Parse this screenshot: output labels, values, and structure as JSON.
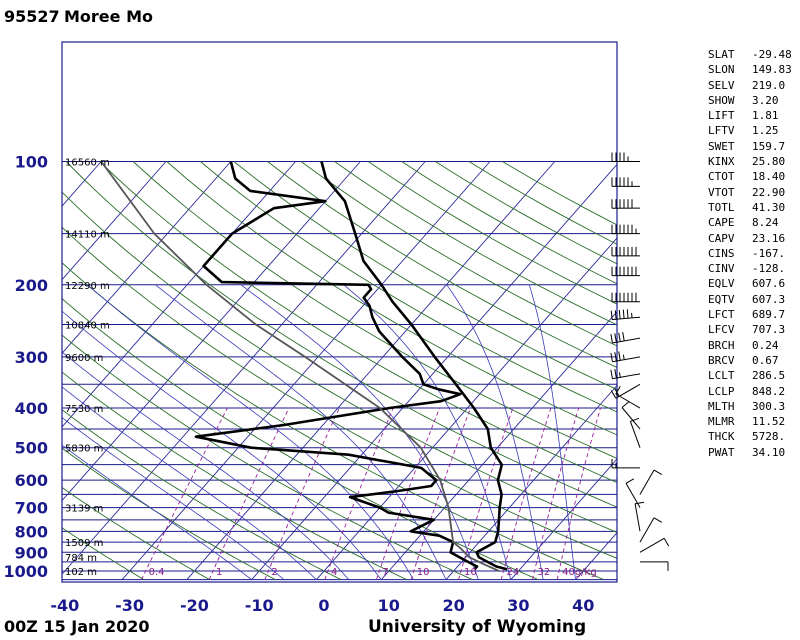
{
  "header": {
    "station_id": "95527",
    "station_name": "Moree Mo"
  },
  "footer": {
    "time": "00Z 15 Jan 2020",
    "source": "University of Wyoming"
  },
  "indices": [
    {
      "key": "SLAT",
      "value": "-29.48"
    },
    {
      "key": "SLON",
      "value": "149.83"
    },
    {
      "key": "SELV",
      "value": "219.0"
    },
    {
      "key": "SHOW",
      "value": "3.20"
    },
    {
      "key": "LIFT",
      "value": "1.81"
    },
    {
      "key": "LFTV",
      "value": "1.25"
    },
    {
      "key": "SWET",
      "value": "159.7"
    },
    {
      "key": "KINX",
      "value": "25.80"
    },
    {
      "key": "CTOT",
      "value": "18.40"
    },
    {
      "key": "VTOT",
      "value": "22.90"
    },
    {
      "key": "TOTL",
      "value": "41.30"
    },
    {
      "key": "CAPE",
      "value": "8.24"
    },
    {
      "key": "CAPV",
      "value": "23.16"
    },
    {
      "key": "CINS",
      "value": "-167."
    },
    {
      "key": "CINV",
      "value": "-128."
    },
    {
      "key": "EQLV",
      "value": "607.6"
    },
    {
      "key": "EQTV",
      "value": "607.3"
    },
    {
      "key": "LFCT",
      "value": "689.7"
    },
    {
      "key": "LFCV",
      "value": "707.3"
    },
    {
      "key": "BRCH",
      "value": "0.24"
    },
    {
      "key": "BRCV",
      "value": "0.67"
    },
    {
      "key": "LCLT",
      "value": "286.5"
    },
    {
      "key": "LCLP",
      "value": "848.2"
    },
    {
      "key": "MLTH",
      "value": "300.3"
    },
    {
      "key": "MLMR",
      "value": "11.52"
    },
    {
      "key": "THCK",
      "value": "5728."
    },
    {
      "key": "PWAT",
      "value": "34.10"
    }
  ],
  "chart_data": {
    "type": "line",
    "title": "",
    "xlabel": "",
    "ylabel": "",
    "x_axis_ticks": [
      -40,
      -30,
      -20,
      -10,
      0,
      10,
      20,
      30,
      40
    ],
    "y_axis_ticks": [
      100,
      200,
      300,
      400,
      500,
      600,
      700,
      800,
      900,
      1000
    ],
    "xlim": [
      -40,
      45
    ],
    "ylim": [
      1050,
      100
    ],
    "y_scale": "log",
    "skewed_isotherms": true,
    "height_labels": [
      {
        "p": 100,
        "text": "16560 m"
      },
      {
        "p": 150,
        "text": "14110 m"
      },
      {
        "p": 200,
        "text": "12290 m"
      },
      {
        "p": 250,
        "text": "10840 m"
      },
      {
        "p": 300,
        "text": "9600 m"
      },
      {
        "p": 400,
        "text": "7530 m"
      },
      {
        "p": 500,
        "text": "5830 m"
      },
      {
        "p": 700,
        "text": "3139 m"
      },
      {
        "p": 850,
        "text": "1509 m"
      },
      {
        "p": 925,
        "text": "784 m"
      },
      {
        "p": 1000,
        "text": "102 m"
      }
    ],
    "mixing_ratio_labels": [
      "0.4",
      "1",
      "2",
      "4",
      "7",
      "10",
      "16",
      "24",
      "32",
      "40g/kg"
    ],
    "series": [
      {
        "color": "#000000",
        "points": [
          [
            990,
            28
          ],
          [
            975,
            26
          ],
          [
            950,
            24
          ],
          [
            925,
            22
          ],
          [
            900,
            21
          ],
          [
            850,
            22.5
          ],
          [
            800,
            21.5
          ],
          [
            700,
            18.5
          ],
          [
            650,
            17
          ],
          [
            600,
            14.5
          ],
          [
            550,
            13
          ],
          [
            500,
            9
          ],
          [
            450,
            6
          ],
          [
            400,
            1
          ],
          [
            350,
            -5
          ],
          [
            300,
            -12
          ],
          [
            250,
            -20
          ],
          [
            220,
            -26
          ],
          [
            200,
            -30
          ],
          [
            175,
            -36
          ],
          [
            150,
            -41
          ],
          [
            125,
            -47
          ],
          [
            110,
            -53
          ],
          [
            100,
            -56
          ]
        ]
      },
      {
        "color": "#000000",
        "points": [
          [
            990,
            23
          ],
          [
            975,
            23
          ],
          [
            950,
            21
          ],
          [
            925,
            19
          ],
          [
            900,
            17
          ],
          [
            850,
            16
          ],
          [
            820,
            13
          ],
          [
            800,
            8
          ],
          [
            750,
            10
          ],
          [
            720,
            2
          ],
          [
            700,
            0
          ],
          [
            660,
            -6
          ],
          [
            640,
            0
          ],
          [
            620,
            5
          ],
          [
            600,
            5
          ],
          [
            560,
            1
          ],
          [
            520,
            -12
          ],
          [
            500,
            -28
          ],
          [
            470,
            -38
          ],
          [
            440,
            -26
          ],
          [
            400,
            -12
          ],
          [
            385,
            -5
          ],
          [
            370,
            -3
          ],
          [
            360,
            -7
          ],
          [
            350,
            -10
          ],
          [
            330,
            -12
          ],
          [
            300,
            -17
          ],
          [
            260,
            -24
          ],
          [
            240,
            -27
          ],
          [
            225,
            -29
          ],
          [
            215,
            -31
          ],
          [
            205,
            -31
          ],
          [
            200,
            -32
          ],
          [
            197,
            -55
          ],
          [
            180,
            -60
          ],
          [
            150,
            -60
          ],
          [
            130,
            -57
          ],
          [
            125,
            -50
          ],
          [
            118,
            -63
          ],
          [
            110,
            -67
          ],
          [
            100,
            -70
          ]
        ]
      },
      {
        "color": "#555555",
        "points": [
          [
            1000,
            27
          ],
          [
            960,
            23.5
          ],
          [
            925,
            20.5
          ],
          [
            880,
            18
          ],
          [
            850,
            16
          ],
          [
            800,
            14.3
          ],
          [
            700,
            10.6
          ],
          [
            600,
            5.6
          ],
          [
            500,
            -1.8
          ],
          [
            400,
            -13.5
          ],
          [
            300,
            -32
          ],
          [
            250,
            -44
          ],
          [
            200,
            -57
          ],
          [
            150,
            -72
          ],
          [
            100,
            -90
          ]
        ]
      }
    ],
    "winds": [
      {
        "p": 100,
        "dir": 270,
        "spd": 45
      },
      {
        "p": 115,
        "dir": 270,
        "spd": 55
      },
      {
        "p": 130,
        "dir": 270,
        "spd": 60
      },
      {
        "p": 150,
        "dir": 270,
        "spd": 65
      },
      {
        "p": 170,
        "dir": 270,
        "spd": 70
      },
      {
        "p": 190,
        "dir": 270,
        "spd": 70
      },
      {
        "p": 220,
        "dir": 270,
        "spd": 70
      },
      {
        "p": 240,
        "dir": 265,
        "spd": 55
      },
      {
        "p": 270,
        "dir": 260,
        "spd": 40
      },
      {
        "p": 300,
        "dir": 260,
        "spd": 35
      },
      {
        "p": 330,
        "dir": 260,
        "spd": 25
      },
      {
        "p": 350,
        "dir": 240,
        "spd": 20
      },
      {
        "p": 400,
        "dir": 300,
        "spd": 10
      },
      {
        "p": 450,
        "dir": 320,
        "spd": 10
      },
      {
        "p": 500,
        "dir": 340,
        "spd": 10
      },
      {
        "p": 560,
        "dir": 270,
        "spd": 15
      },
      {
        "p": 650,
        "dir": 30,
        "spd": 10
      },
      {
        "p": 700,
        "dir": 330,
        "spd": 10
      },
      {
        "p": 800,
        "dir": 350,
        "spd": 10
      },
      {
        "p": 850,
        "dir": 30,
        "spd": 10
      },
      {
        "p": 900,
        "dir": 60,
        "spd": 10
      },
      {
        "p": 950,
        "dir": 90,
        "spd": 10
      }
    ]
  }
}
